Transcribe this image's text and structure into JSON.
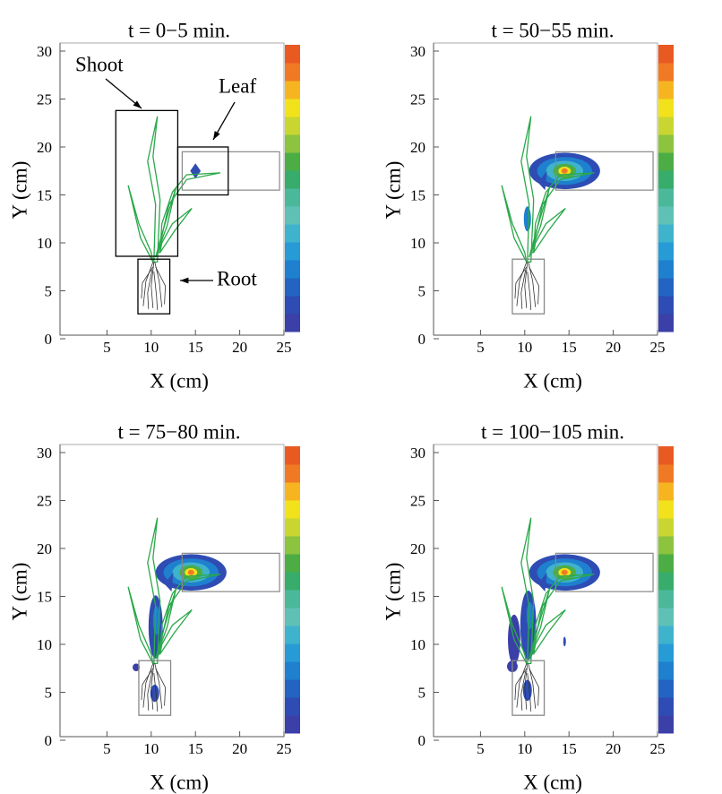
{
  "chart_data": [
    {
      "type": "image",
      "title": "t = 0−5 min.",
      "xlabel": "X (cm)",
      "ylabel": "Y (cm)",
      "xlim": [
        0,
        25
      ],
      "ylim": [
        0,
        30
      ],
      "xticks": [
        5,
        10,
        15,
        20,
        25
      ],
      "yticks": [
        0,
        5,
        10,
        15,
        20,
        25,
        30
      ],
      "annotations": [
        "Shoot",
        "Leaf",
        "Root"
      ]
    },
    {
      "type": "image",
      "title": "t = 50−55 min.",
      "xlabel": "X (cm)",
      "ylabel": "Y (cm)",
      "xlim": [
        0,
        25
      ],
      "ylim": [
        0,
        30
      ],
      "xticks": [
        5,
        10,
        15,
        20,
        25
      ],
      "yticks": [
        0,
        5,
        10,
        15,
        20,
        25,
        30
      ]
    },
    {
      "type": "image",
      "title": "t = 75−80 min.",
      "xlabel": "X (cm)",
      "ylabel": "Y (cm)",
      "xlim": [
        0,
        25
      ],
      "ylim": [
        0,
        30
      ],
      "xticks": [
        5,
        10,
        15,
        20,
        25
      ],
      "yticks": [
        0,
        5,
        10,
        15,
        20,
        25,
        30
      ]
    },
    {
      "type": "image",
      "title": "t = 100−105 min.",
      "xlabel": "X (cm)",
      "ylabel": "Y (cm)",
      "xlim": [
        0,
        25
      ],
      "ylim": [
        0,
        30
      ],
      "xticks": [
        5,
        10,
        15,
        20,
        25
      ],
      "yticks": [
        0,
        5,
        10,
        15,
        20,
        25,
        30
      ]
    }
  ]
}
